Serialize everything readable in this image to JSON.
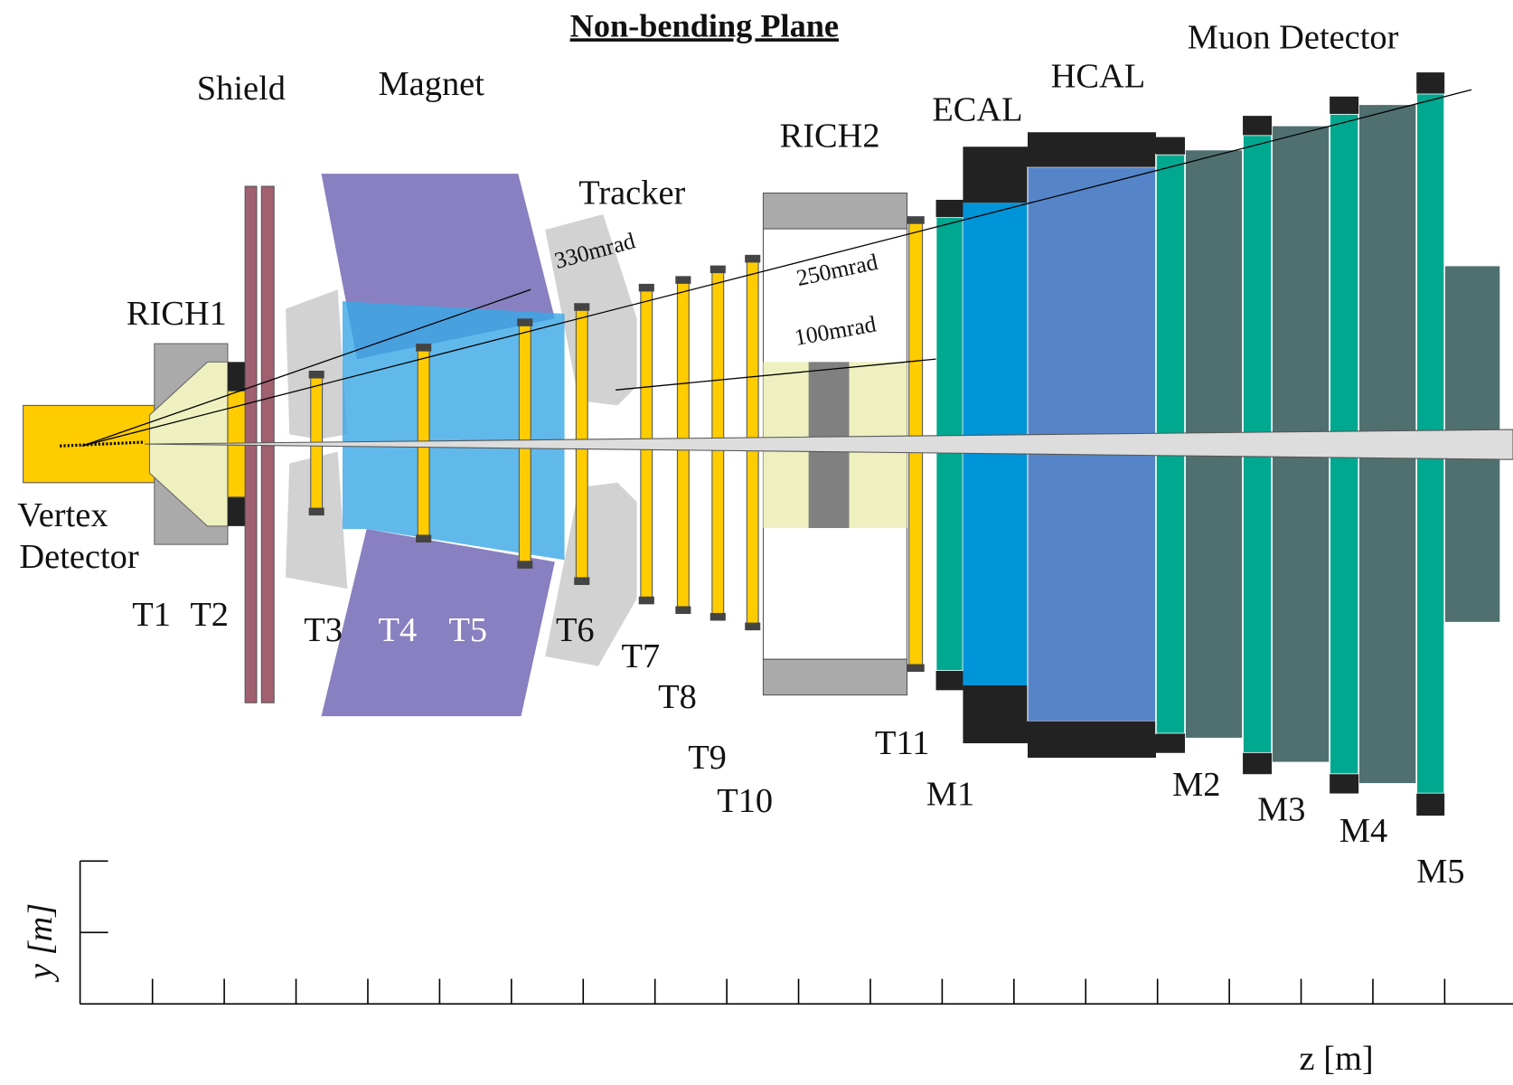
{
  "title": "Non-bending Plane",
  "components": {
    "muon": "Muon Detector",
    "shield": "Shield",
    "magnet": "Magnet",
    "hcal": "HCAL",
    "ecal": "ECAL",
    "rich2": "RICH2",
    "tracker": "Tracker",
    "rich1": "RICH1",
    "vertex": [
      "Vertex",
      "Detector"
    ]
  },
  "angles": [
    "330mrad",
    "250mrad",
    "100mrad"
  ],
  "stations": {
    "tracker": [
      "T1",
      "T2",
      "T3",
      "T4",
      "T5",
      "T6",
      "T7",
      "T8",
      "T9",
      "T10",
      "T11"
    ],
    "muon": [
      "M1",
      "M2",
      "M3",
      "M4",
      "M5"
    ]
  },
  "axes": {
    "y": "y [m]",
    "z": "z [m]"
  }
}
